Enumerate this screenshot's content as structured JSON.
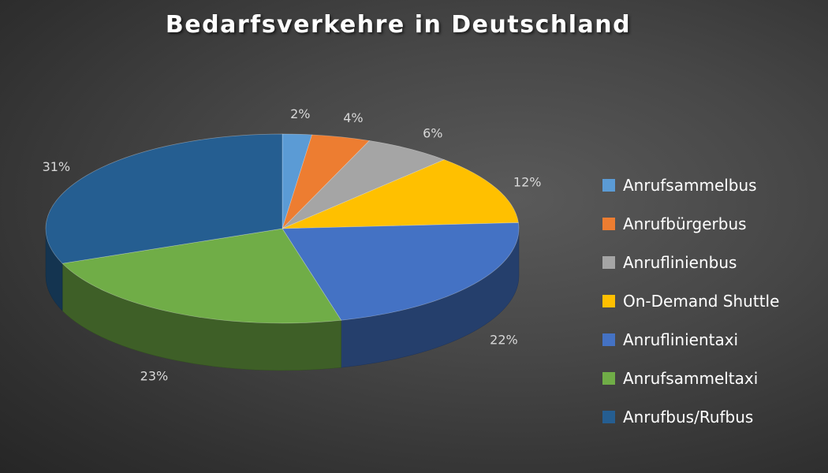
{
  "chart_data": {
    "type": "pie",
    "title": "Bedarfsverkehre in Deutschland",
    "categories": [
      "Anrufsammelbus",
      "Anrufbürgerbus",
      "Anruflinienbus",
      "On-Demand Shuttle",
      "Anruflinientaxi",
      "Anrufsammeltaxi",
      "Anrufbus/Rufbus"
    ],
    "values": [
      2,
      4,
      6,
      12,
      22,
      23,
      31
    ],
    "data_labels": [
      "2%",
      "4%",
      "6%",
      "12%",
      "22%",
      "23%",
      "31%"
    ],
    "colors": [
      "#5b9bd5",
      "#ed7d31",
      "#a5a5a5",
      "#ffc000",
      "#4472c4",
      "#70ad47",
      "#255e91"
    ],
    "legend_position": "right",
    "style": "3d"
  }
}
